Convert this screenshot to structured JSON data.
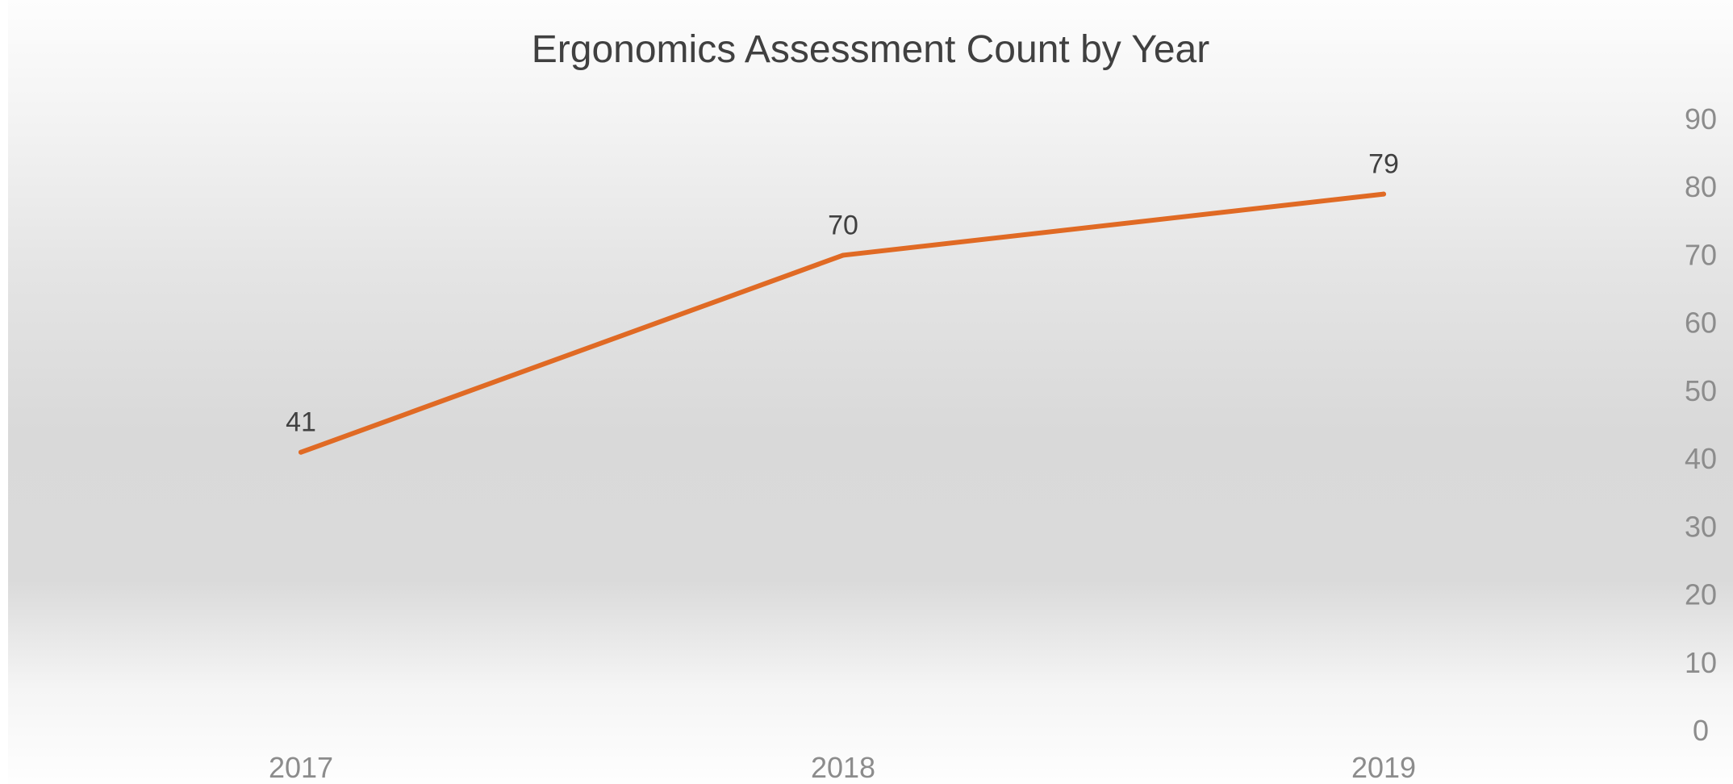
{
  "chart_data": {
    "type": "line",
    "title": "Ergonomics Assessment Count by Year",
    "xlabel": "",
    "ylabel": "",
    "categories": [
      "2017",
      "2018",
      "2019"
    ],
    "series": [
      {
        "values": [
          41,
          70,
          79
        ],
        "color": "#e06a24"
      }
    ],
    "ylim": [
      0,
      90
    ],
    "yticks": [
      0,
      10,
      20,
      30,
      40,
      50,
      60,
      70,
      80,
      90
    ],
    "y_axis_side": "right",
    "data_labels": [
      "41",
      "70",
      "79"
    ],
    "grid": false,
    "legend": "none"
  }
}
